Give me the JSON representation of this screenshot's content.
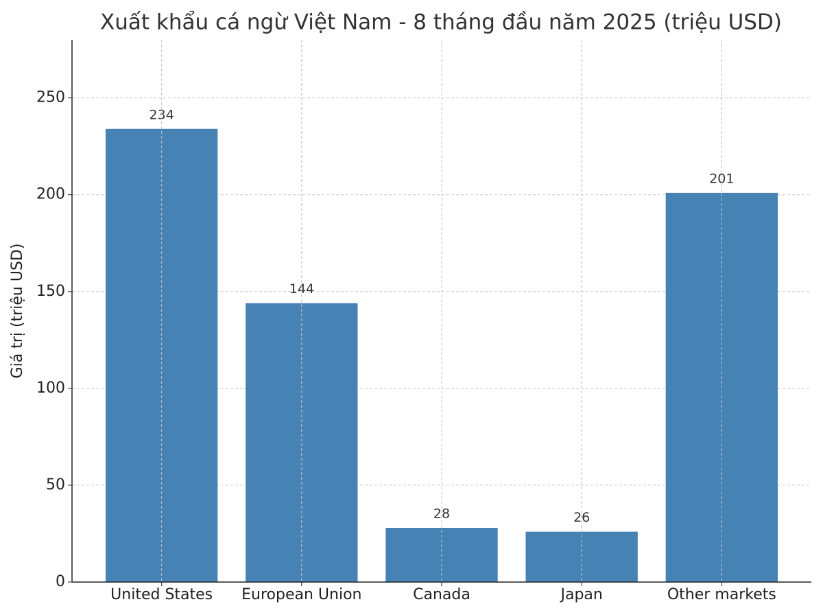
{
  "chart_data": {
    "type": "bar",
    "title": "Xuất khẩu cá ngừ Việt Nam - 8 tháng đầu năm 2025 (triệu USD)",
    "y_label": "Giá trị (triệu USD)",
    "categories": [
      "United States",
      "European Union",
      "Canada",
      "Japan",
      "Other markets"
    ],
    "values": [
      234,
      144,
      28,
      26,
      201
    ],
    "color": "#4682b4",
    "ylim": [
      0,
      280
    ],
    "yticks": [
      0,
      50,
      100,
      150,
      200,
      250
    ],
    "grid": true
  }
}
